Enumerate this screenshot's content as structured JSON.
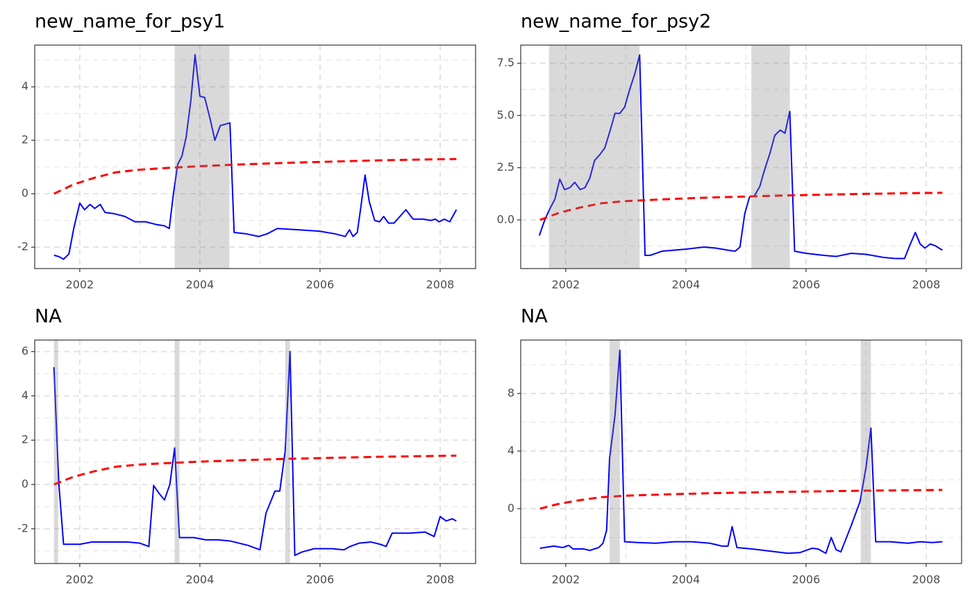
{
  "chart_data": [
    {
      "type": "line",
      "title": "new_name_for_psy1",
      "xlim": [
        2001.25,
        2008.59
      ],
      "xticks": [
        2002,
        2004,
        2006,
        2008
      ],
      "xminor": [
        2003,
        2005,
        2007
      ],
      "ylim": [
        -2.8,
        5.56
      ],
      "yticks": [
        -2,
        0,
        2,
        4
      ],
      "yminor": [
        -1,
        1,
        3,
        5
      ],
      "grid": true,
      "shade_color": "#808080",
      "shaded": [
        [
          2003.58,
          2004.49
        ]
      ],
      "series": [
        {
          "color": "#0000ff",
          "linestyle": "solid",
          "x": [
            2001.57,
            2001.65,
            2001.73,
            2001.82,
            2001.9,
            2002.0,
            2002.08,
            2002.17,
            2002.25,
            2002.34,
            2002.42,
            2002.58,
            2002.75,
            2002.92,
            2003.1,
            2003.27,
            2003.41,
            2003.49,
            2003.56,
            2003.63,
            2003.7,
            2003.77,
            2003.85,
            2003.92,
            2004.0,
            2004.08,
            2004.17,
            2004.25,
            2004.34,
            2004.42,
            2004.5,
            2004.57,
            2004.77,
            2004.98,
            2005.12,
            2005.29,
            2005.64,
            2005.99,
            2006.25,
            2006.42,
            2006.49,
            2006.55,
            2006.62,
            2006.68,
            2006.75,
            2006.82,
            2006.91,
            2006.99,
            2007.06,
            2007.14,
            2007.23,
            2007.43,
            2007.55,
            2007.72,
            2007.84,
            2007.92,
            2007.98,
            2008.07,
            2008.16,
            2008.27
          ],
          "values": [
            -2.3,
            -2.35,
            -2.45,
            -2.25,
            -1.3,
            -0.35,
            -0.6,
            -0.4,
            -0.55,
            -0.4,
            -0.7,
            -0.75,
            -0.85,
            -1.05,
            -1.05,
            -1.15,
            -1.2,
            -1.3,
            0,
            1.1,
            1.4,
            2.1,
            3.5,
            5.2,
            3.65,
            3.6,
            2.8,
            2.0,
            2.55,
            2.6,
            2.65,
            -1.45,
            -1.5,
            -1.6,
            -1.5,
            -1.3,
            -1.35,
            -1.4,
            -1.5,
            -1.6,
            -1.35,
            -1.6,
            -1.45,
            -0.5,
            0.7,
            -0.3,
            -1.0,
            -1.05,
            -0.85,
            -1.1,
            -1.1,
            -0.6,
            -0.95,
            -0.95,
            -1.0,
            -0.95,
            -1.05,
            -0.95,
            -1.05,
            -0.6
          ]
        },
        {
          "color": "#ff0000",
          "linestyle": "dashed",
          "x": [
            2001.57,
            2001.9,
            2002.25,
            2002.6,
            2003.0,
            2003.5,
            2004.0,
            2004.5,
            2005.0,
            2005.5,
            2006.0,
            2006.5,
            2007.0,
            2007.5,
            2008.0,
            2008.27
          ],
          "values": [
            0,
            0.35,
            0.6,
            0.8,
            0.9,
            0.97,
            1.03,
            1.08,
            1.12,
            1.16,
            1.19,
            1.22,
            1.25,
            1.27,
            1.29,
            1.3
          ]
        }
      ]
    },
    {
      "type": "line",
      "title": "new_name_for_psy2",
      "xlim": [
        2001.25,
        2008.59
      ],
      "xticks": [
        2002,
        2004,
        2006,
        2008
      ],
      "xminor": [
        2003,
        2005,
        2007
      ],
      "ylim": [
        -2.33,
        8.37
      ],
      "yticks": [
        {
          "value": 0,
          "label": "0.0"
        },
        2.5,
        {
          "value": 5,
          "label": "5.0"
        },
        7.5
      ],
      "yminor": [
        -1.25,
        1.25,
        3.75,
        6.25
      ],
      "grid": true,
      "shade_color": "#808080",
      "shaded": [
        [
          2001.72,
          2003.23
        ],
        [
          2005.09,
          2005.73
        ]
      ],
      "series": [
        {
          "color": "#0000ff",
          "linestyle": "solid",
          "x": [
            2001.56,
            2001.65,
            2001.73,
            2001.82,
            2001.9,
            2001.98,
            2002.07,
            2002.15,
            2002.24,
            2002.32,
            2002.4,
            2002.48,
            2002.56,
            2002.65,
            2002.73,
            2002.82,
            2002.9,
            2002.98,
            2003.07,
            2003.15,
            2003.23,
            2003.32,
            2003.4,
            2003.6,
            2003.8,
            2004.0,
            2004.3,
            2004.5,
            2004.7,
            2004.82,
            2004.9,
            2004.98,
            2005.06,
            2005.14,
            2005.23,
            2005.31,
            2005.4,
            2005.48,
            2005.57,
            2005.65,
            2005.73,
            2005.81,
            2006.0,
            2006.3,
            2006.5,
            2006.75,
            2007.0,
            2007.3,
            2007.5,
            2007.64,
            2007.73,
            2007.82,
            2007.9,
            2007.98,
            2008.07,
            2008.16,
            2008.27
          ],
          "values": [
            -0.75,
            0,
            0.5,
            1.0,
            1.95,
            1.45,
            1.55,
            1.8,
            1.45,
            1.55,
            2.0,
            2.85,
            3.1,
            3.45,
            4.2,
            5.1,
            5.1,
            5.4,
            6.3,
            7.0,
            7.9,
            -1.7,
            -1.7,
            -1.5,
            -1.45,
            -1.4,
            -1.3,
            -1.35,
            -1.45,
            -1.5,
            -1.3,
            0.3,
            1.1,
            1.15,
            1.6,
            2.4,
            3.2,
            4.05,
            4.3,
            4.15,
            5.2,
            -1.5,
            -1.6,
            -1.7,
            -1.75,
            -1.6,
            -1.65,
            -1.8,
            -1.85,
            -1.85,
            -1.2,
            -0.6,
            -1.15,
            -1.35,
            -1.15,
            -1.25,
            -1.45
          ]
        },
        {
          "color": "#ff0000",
          "linestyle": "dashed",
          "x": [
            2001.57,
            2001.9,
            2002.25,
            2002.6,
            2003.0,
            2003.5,
            2004.0,
            2004.5,
            2005.0,
            2005.5,
            2006.0,
            2006.5,
            2007.0,
            2007.5,
            2008.0,
            2008.27
          ],
          "values": [
            0,
            0.35,
            0.6,
            0.8,
            0.9,
            0.97,
            1.03,
            1.08,
            1.12,
            1.16,
            1.19,
            1.22,
            1.25,
            1.27,
            1.29,
            1.3
          ]
        }
      ]
    },
    {
      "type": "line",
      "title": "NA",
      "xlim": [
        2001.25,
        2008.59
      ],
      "xticks": [
        2002,
        2004,
        2006,
        2008
      ],
      "xminor": [
        2003,
        2005,
        2007
      ],
      "ylim": [
        -3.57,
        6.52
      ],
      "yticks": [
        -2,
        0,
        2,
        4,
        6
      ],
      "yminor": [
        -3,
        -1,
        1,
        3,
        5
      ],
      "grid": true,
      "shade_color": "#808080",
      "shaded": [
        [
          2001.57,
          2001.64
        ],
        [
          2003.58,
          2003.66
        ],
        [
          2005.42,
          2005.5
        ]
      ],
      "series": [
        {
          "color": "#0000ff",
          "linestyle": "solid",
          "x": [
            2001.57,
            2001.65,
            2001.73,
            2002.0,
            2002.2,
            2002.5,
            2002.8,
            2003.0,
            2003.15,
            2003.23,
            2003.32,
            2003.41,
            2003.5,
            2003.58,
            2003.66,
            2003.9,
            2004.0,
            2004.1,
            2004.3,
            2004.5,
            2004.8,
            2005.0,
            2005.1,
            2005.25,
            2005.33,
            2005.42,
            2005.5,
            2005.58,
            2005.7,
            2005.9,
            2006.2,
            2006.4,
            2006.5,
            2006.65,
            2006.85,
            2007.0,
            2007.1,
            2007.2,
            2007.5,
            2007.75,
            2007.9,
            2008.0,
            2008.1,
            2008.2,
            2008.27
          ],
          "values": [
            5.3,
            0.1,
            -2.7,
            -2.7,
            -2.6,
            -2.6,
            -2.6,
            -2.65,
            -2.8,
            -0.05,
            -0.4,
            -0.7,
            0.0,
            1.65,
            -2.4,
            -2.4,
            -2.45,
            -2.5,
            -2.5,
            -2.55,
            -2.75,
            -2.95,
            -1.3,
            -0.3,
            -0.3,
            1.5,
            6.0,
            -3.2,
            -3.05,
            -2.9,
            -2.9,
            -2.95,
            -2.8,
            -2.65,
            -2.6,
            -2.7,
            -2.8,
            -2.2,
            -2.2,
            -2.15,
            -2.35,
            -1.45,
            -1.65,
            -1.55,
            -1.65
          ]
        },
        {
          "color": "#ff0000",
          "linestyle": "dashed",
          "x": [
            2001.57,
            2001.9,
            2002.25,
            2002.6,
            2003.0,
            2003.5,
            2004.0,
            2004.5,
            2005.0,
            2005.5,
            2006.0,
            2006.5,
            2007.0,
            2007.5,
            2008.0,
            2008.27
          ],
          "values": [
            0,
            0.35,
            0.6,
            0.8,
            0.9,
            0.97,
            1.03,
            1.08,
            1.12,
            1.16,
            1.19,
            1.22,
            1.25,
            1.27,
            1.29,
            1.3
          ]
        }
      ]
    },
    {
      "type": "line",
      "title": "NA",
      "xlim": [
        2001.25,
        2008.59
      ],
      "xticks": [
        2002,
        2004,
        2006,
        2008
      ],
      "xminor": [
        2003,
        2005,
        2007
      ],
      "ylim": [
        -3.81,
        11.71
      ],
      "yticks": [
        0,
        4,
        8
      ],
      "yminor": [
        -2,
        2,
        6,
        10
      ],
      "grid": true,
      "shade_color": "#808080",
      "shaded": [
        [
          2002.73,
          2002.9
        ],
        [
          2006.91,
          2007.08
        ]
      ],
      "series": [
        {
          "color": "#0000ff",
          "linestyle": "solid",
          "x": [
            2001.57,
            2001.8,
            2001.95,
            2002.05,
            2002.12,
            2002.3,
            2002.4,
            2002.55,
            2002.62,
            2002.68,
            2002.73,
            2002.82,
            2002.9,
            2002.98,
            2003.2,
            2003.5,
            2003.8,
            2004.1,
            2004.4,
            2004.6,
            2004.7,
            2004.77,
            2004.85,
            2005.1,
            2005.4,
            2005.7,
            2005.9,
            2006.1,
            2006.2,
            2006.33,
            2006.42,
            2006.5,
            2006.58,
            2006.75,
            2006.9,
            2007.0,
            2007.08,
            2007.16,
            2007.4,
            2007.7,
            2007.9,
            2008.1,
            2008.27
          ],
          "values": [
            -2.75,
            -2.6,
            -2.7,
            -2.55,
            -2.8,
            -2.8,
            -2.9,
            -2.7,
            -2.4,
            -1.5,
            3.5,
            6.5,
            11.0,
            -2.3,
            -2.35,
            -2.4,
            -2.3,
            -2.3,
            -2.4,
            -2.6,
            -2.6,
            -1.25,
            -2.7,
            -2.8,
            -2.95,
            -3.1,
            -3.05,
            -2.75,
            -2.8,
            -3.1,
            -2.0,
            -2.85,
            -3.0,
            -1.2,
            0.5,
            2.9,
            5.6,
            -2.3,
            -2.3,
            -2.4,
            -2.3,
            -2.35,
            -2.3
          ]
        },
        {
          "color": "#ff0000",
          "linestyle": "dashed",
          "x": [
            2001.57,
            2001.9,
            2002.25,
            2002.6,
            2003.0,
            2003.5,
            2004.0,
            2004.5,
            2005.0,
            2005.5,
            2006.0,
            2006.5,
            2007.0,
            2007.5,
            2008.0,
            2008.27
          ],
          "values": [
            0,
            0.35,
            0.6,
            0.8,
            0.9,
            0.97,
            1.03,
            1.08,
            1.12,
            1.16,
            1.19,
            1.22,
            1.25,
            1.27,
            1.29,
            1.3
          ]
        }
      ]
    }
  ]
}
